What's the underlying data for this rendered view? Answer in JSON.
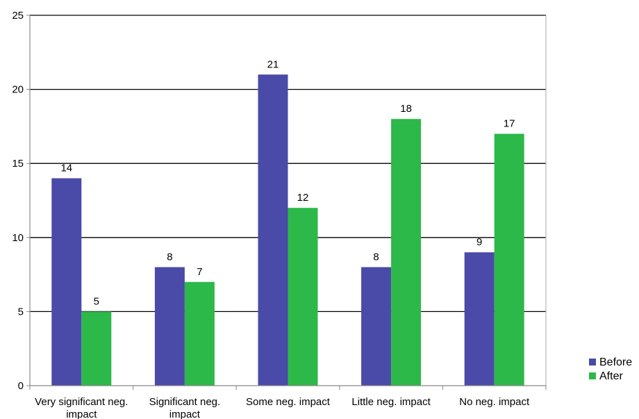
{
  "chart_data": {
    "type": "bar",
    "title": "",
    "xlabel": "",
    "ylabel": "",
    "ylim": [
      0,
      25
    ],
    "yticks": [
      0,
      5,
      10,
      15,
      20,
      25
    ],
    "grid": true,
    "legend_position": "right",
    "categories": [
      [
        "Very significant neg.",
        "impact"
      ],
      [
        "Significant neg.",
        "impact"
      ],
      [
        "Some neg. impact"
      ],
      [
        "Little neg. impact"
      ],
      [
        "No neg. impact"
      ]
    ],
    "series": [
      {
        "name": "Before",
        "color": "#4A4AA8",
        "values": [
          14,
          8,
          21,
          8,
          9
        ]
      },
      {
        "name": "After",
        "color": "#2DB84A",
        "values": [
          5,
          7,
          12,
          18,
          17
        ]
      }
    ]
  }
}
